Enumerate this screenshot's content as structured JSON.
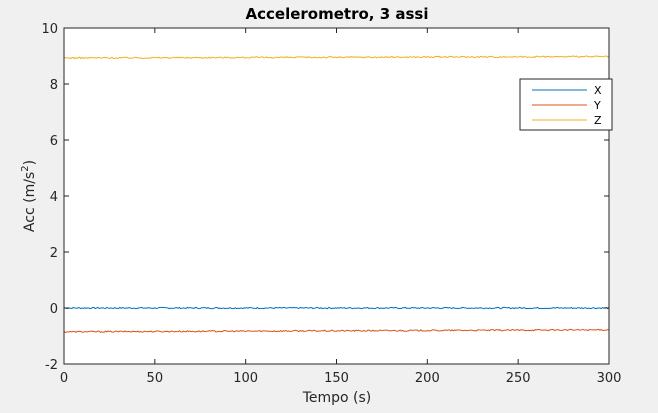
{
  "chart_data": {
    "type": "line",
    "title": "Accelerometro, 3 assi",
    "xlabel": "Tempo (s)",
    "ylabel_base": "Acc (m/s",
    "ylabel_sup": "2",
    "ylabel_end": ")",
    "xlim": [
      0,
      300
    ],
    "ylim": [
      -2,
      10
    ],
    "xticks": [
      0,
      50,
      100,
      150,
      200,
      250,
      300
    ],
    "yticks": [
      -2,
      0,
      2,
      4,
      6,
      8,
      10
    ],
    "grid": false,
    "legend_position": "top-right",
    "series": [
      {
        "name": "X",
        "color": "#0072BD",
        "x": [
          0,
          300
        ],
        "y": [
          0.0,
          0.0
        ]
      },
      {
        "name": "Y",
        "color": "#D95319",
        "x": [
          0,
          300
        ],
        "y": [
          -0.85,
          -0.78
        ]
      },
      {
        "name": "Z",
        "color": "#EDB120",
        "x": [
          0,
          300
        ],
        "y": [
          8.93,
          8.98
        ]
      }
    ]
  }
}
